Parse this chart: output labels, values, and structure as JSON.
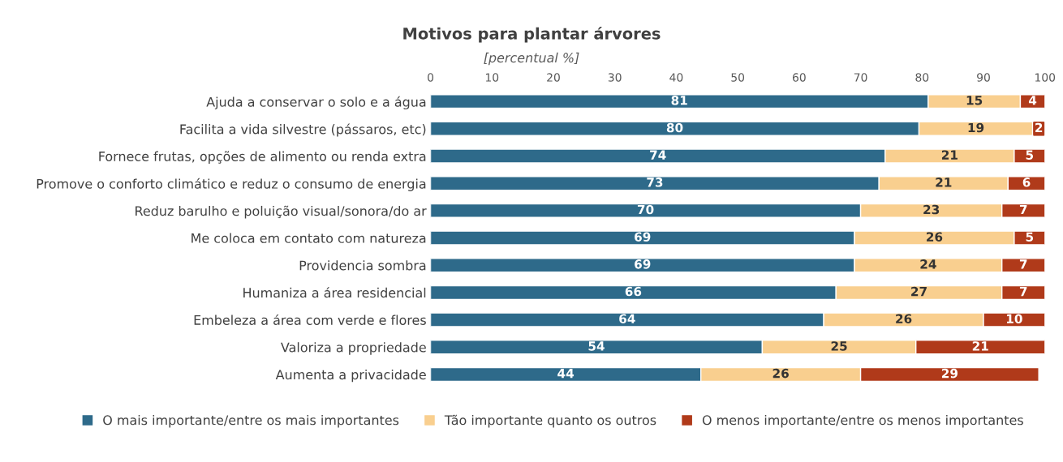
{
  "chart_data": {
    "type": "bar",
    "orientation": "horizontal",
    "stacked": true,
    "title": "Motivos para plantar árvores",
    "subtitle": "[percentual %]",
    "categories": [
      "Ajuda a conservar o solo e a água",
      "Facilita a vida silvestre (pássaros, etc)",
      "Fornece frutas, opções de alimento ou renda extra",
      "Promove o conforto climático e reduz o consumo de energia",
      "Reduz barulho e poluição visual/sonora/do ar",
      "Me coloca em contato com natureza",
      "Providencia sombra",
      "Humaniza a área residencial",
      "Embeleza a área com verde e flores",
      "Valoriza a propriedade",
      "Aumenta a privacidade"
    ],
    "series": [
      {
        "name": "O mais importante/entre os mais importantes",
        "color": "#2e6a8a",
        "values": [
          81,
          79.5,
          74,
          73,
          70,
          69,
          69,
          66,
          64,
          54,
          44
        ],
        "value_labels": [
          "81",
          "80",
          "74",
          "73",
          "70",
          "69",
          "69",
          "66",
          "64",
          "54",
          "44"
        ]
      },
      {
        "name": "Tão importante quanto os outros",
        "color": "#f9cf8f",
        "values": [
          15,
          18.5,
          21,
          21,
          23,
          26,
          24,
          27,
          26,
          25,
          26
        ],
        "value_labels": [
          "15",
          "19",
          "21",
          "21",
          "23",
          "26",
          "24",
          "27",
          "26",
          "25",
          "26"
        ]
      },
      {
        "name": "O menos importante/entre os menos importantes",
        "color": "#b03a1a",
        "values": [
          4,
          2,
          5,
          6,
          7,
          5,
          7,
          7,
          10,
          21,
          29
        ],
        "value_labels": [
          "4",
          "2",
          "5",
          "6",
          "7",
          "5",
          "7",
          "7",
          "10",
          "21",
          "29"
        ]
      }
    ],
    "xlim": [
      0,
      100
    ],
    "xticks": [
      0,
      10,
      20,
      30,
      40,
      50,
      60,
      70,
      80,
      90,
      100
    ],
    "grid": false,
    "legend": "bottom"
  }
}
